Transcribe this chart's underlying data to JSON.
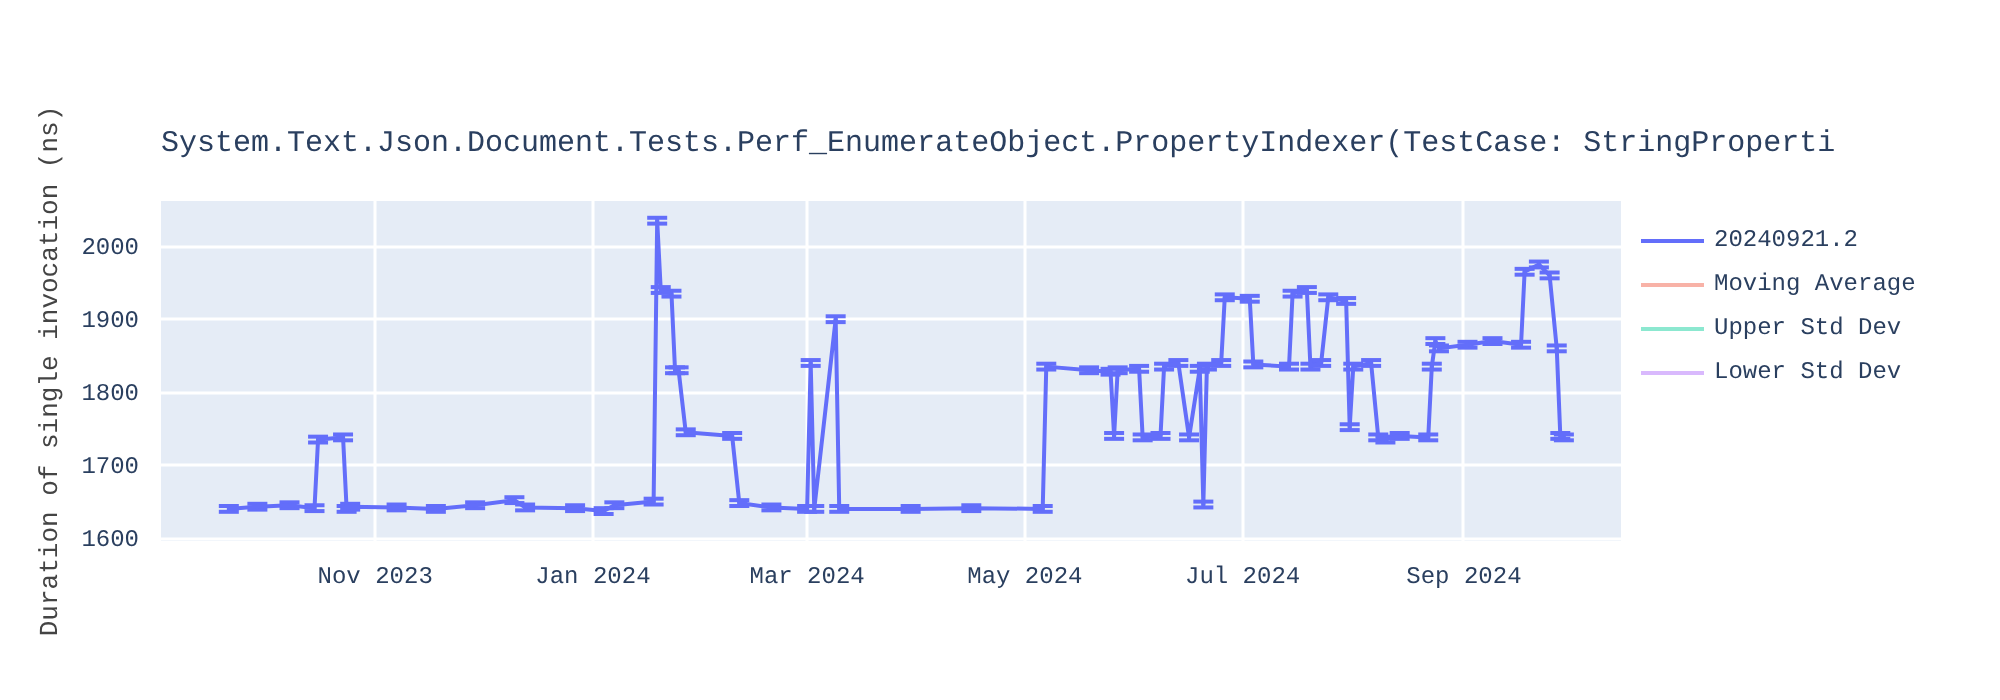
{
  "chart_data": {
    "type": "line",
    "title": "System.Text.Json.Document.Tests.Perf_EnumerateObject.PropertyIndexer(TestCase: StringProperti",
    "ylabel": "Duration of single invocation (ns)",
    "xlim": [
      "2023-09-02",
      "2024-10-15"
    ],
    "ylim": [
      1596,
      2062
    ],
    "xticks": [
      {
        "value": "2023-11-01",
        "label": "Nov 2023"
      },
      {
        "value": "2024-01-01",
        "label": "Jan 2024"
      },
      {
        "value": "2024-03-01",
        "label": "Mar 2024"
      },
      {
        "value": "2024-05-01",
        "label": "May 2024"
      },
      {
        "value": "2024-07-01",
        "label": "Jul 2024"
      },
      {
        "value": "2024-09-01",
        "label": "Sep 2024"
      }
    ],
    "yticks": [
      1600,
      1700,
      1800,
      1900,
      2000
    ],
    "grid": true,
    "legend": "right",
    "series": [
      {
        "name": "20240921.2",
        "color": "#636efa",
        "x": [
          "2023-09-21",
          "2023-09-29",
          "2023-10-08",
          "2023-10-15",
          "2023-10-16",
          "2023-10-23",
          "2023-10-24",
          "2023-10-25",
          "2023-11-07",
          "2023-11-18",
          "2023-11-29",
          "2023-12-10",
          "2023-12-13",
          "2023-12-27",
          "2024-01-04",
          "2024-01-07",
          "2024-01-18",
          "2024-01-19",
          "2024-01-20",
          "2024-01-23",
          "2024-01-24",
          "2024-01-25",
          "2024-01-27",
          "2024-02-09",
          "2024-02-11",
          "2024-02-20",
          "2024-03-01",
          "2024-03-02",
          "2024-03-03",
          "2024-03-09",
          "2024-03-10",
          "2024-03-30",
          "2024-04-16",
          "2024-05-06",
          "2024-05-07",
          "2024-05-19",
          "2024-05-25",
          "2024-05-26",
          "2024-05-27",
          "2024-06-02",
          "2024-06-03",
          "2024-06-08",
          "2024-06-09",
          "2024-06-13",
          "2024-06-16",
          "2024-06-19",
          "2024-06-20",
          "2024-06-21",
          "2024-06-25",
          "2024-06-26",
          "2024-07-03",
          "2024-07-04",
          "2024-07-14",
          "2024-07-15",
          "2024-07-19",
          "2024-07-20",
          "2024-07-23",
          "2024-07-25",
          "2024-07-30",
          "2024-07-31",
          "2024-08-01",
          "2024-08-06",
          "2024-08-08",
          "2024-08-10",
          "2024-08-14",
          "2024-08-22",
          "2024-08-23",
          "2024-08-24",
          "2024-08-25",
          "2024-09-02",
          "2024-09-09",
          "2024-09-17",
          "2024-09-18",
          "2024-09-22",
          "2024-09-25",
          "2024-09-27",
          "2024-09-28",
          "2024-09-29"
        ],
        "values": [
          1640,
          1643,
          1645,
          1641,
          1735,
          1738,
          1640,
          1643,
          1642,
          1640,
          1645,
          1652,
          1642,
          1641,
          1637,
          1645,
          1650,
          2035,
          1940,
          1935,
          1830,
          1830,
          1745,
          1740,
          1648,
          1642,
          1640,
          1840,
          1640,
          1900,
          1640,
          1640,
          1641,
          1640,
          1835,
          1830,
          1828,
          1740,
          1830,
          1832,
          1738,
          1740,
          1835,
          1840,
          1738,
          1832,
          1646,
          1835,
          1840,
          1930,
          1928,
          1838,
          1835,
          1935,
          1940,
          1835,
          1840,
          1930,
          1925,
          1752,
          1835,
          1840,
          1738,
          1735,
          1740,
          1738,
          1835,
          1870,
          1860,
          1865,
          1870,
          1865,
          1965,
          1975,
          1960,
          1860,
          1740,
          1738
        ],
        "errors": [
          4,
          4,
          4,
          4,
          4,
          4,
          4,
          4,
          4,
          4,
          4,
          4,
          4,
          4,
          4,
          4,
          4,
          4,
          4,
          4,
          4,
          4,
          4,
          4,
          4,
          4,
          4,
          4,
          4,
          4,
          4,
          4,
          4,
          4,
          4,
          4,
          4,
          4,
          4,
          4,
          4,
          4,
          4,
          4,
          4,
          4,
          4,
          4,
          4,
          4,
          4,
          4,
          4,
          4,
          4,
          4,
          4,
          4,
          4,
          4,
          4,
          4,
          4,
          4,
          4,
          4,
          4,
          4,
          4,
          4,
          4,
          4,
          4,
          4,
          4,
          4,
          4,
          4
        ]
      },
      {
        "name": "Moving Average",
        "color": "#ef553b"
      },
      {
        "name": "Upper Std Dev",
        "color": "#00cc96"
      },
      {
        "name": "Lower Std Dev",
        "color": "#ab63fa"
      }
    ]
  }
}
